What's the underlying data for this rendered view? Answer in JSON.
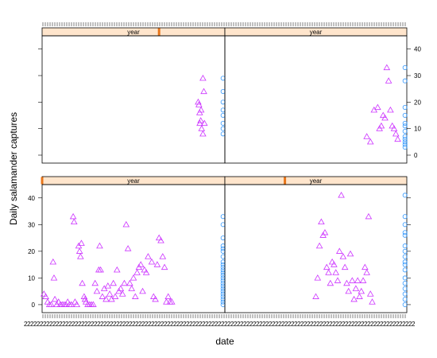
{
  "chart_data": {
    "type": "scatter",
    "xlabel": "date",
    "ylabel": "Daily salamander captures",
    "y_ticks": [
      0,
      10,
      20,
      30,
      40
    ],
    "ylim": [
      -3,
      45
    ],
    "grid": false,
    "layout": "2x2 lattice panels",
    "panels": [
      {
        "position": "top-left",
        "strip": "year",
        "strip_marker": 0.64,
        "series": [
          {
            "marker": "triangle",
            "color": "#cc33ff",
            "points": [
              [
                0.854,
                20
              ],
              [
                0.858,
                19
              ],
              [
                0.862,
                16
              ],
              [
                0.868,
                13
              ],
              [
                0.873,
                10
              ],
              [
                0.88,
                29
              ],
              [
                0.885,
                24
              ],
              [
                0.888,
                12
              ],
              [
                0.88,
                8
              ],
              [
                0.863,
                12
              ],
              [
                0.87,
                17
              ]
            ]
          },
          {
            "marker": "circle",
            "color": "#3399ff",
            "points": [
              [
                0.99,
                29
              ],
              [
                0.99,
                24
              ],
              [
                0.99,
                20
              ],
              [
                0.99,
                17
              ],
              [
                0.99,
                15
              ],
              [
                0.99,
                12
              ],
              [
                0.99,
                10
              ],
              [
                0.99,
                8
              ]
            ]
          }
        ]
      },
      {
        "position": "top-right",
        "strip": "year",
        "strip_marker": null,
        "series": [
          {
            "marker": "triangle",
            "color": "#cc33ff",
            "points": [
              [
                0.78,
                7
              ],
              [
                0.8,
                5
              ],
              [
                0.82,
                17
              ],
              [
                0.84,
                18
              ],
              [
                0.85,
                10
              ],
              [
                0.86,
                11
              ],
              [
                0.87,
                15
              ],
              [
                0.88,
                14
              ],
              [
                0.89,
                33
              ],
              [
                0.9,
                28
              ],
              [
                0.91,
                17
              ],
              [
                0.92,
                11
              ],
              [
                0.93,
                10
              ],
              [
                0.94,
                8
              ],
              [
                0.95,
                6
              ]
            ]
          },
          {
            "marker": "circle",
            "color": "#3399ff",
            "points": [
              [
                0.99,
                33
              ],
              [
                0.99,
                28
              ],
              [
                0.99,
                18
              ],
              [
                0.99,
                15
              ],
              [
                0.99,
                12
              ],
              [
                0.99,
                11
              ],
              [
                0.99,
                9
              ],
              [
                0.99,
                7
              ],
              [
                0.99,
                6
              ],
              [
                0.99,
                5
              ],
              [
                0.99,
                4
              ],
              [
                0.99,
                3
              ]
            ]
          }
        ]
      },
      {
        "position": "bottom-left",
        "strip": "year",
        "strip_marker": 0.0,
        "series": [
          {
            "marker": "triangle",
            "color": "#cc33ff",
            "points": [
              [
                0.01,
                4
              ],
              [
                0.02,
                3
              ],
              [
                0.03,
                1
              ],
              [
                0.04,
                0
              ],
              [
                0.05,
                0
              ],
              [
                0.06,
                16
              ],
              [
                0.065,
                10
              ],
              [
                0.07,
                2
              ],
              [
                0.08,
                0
              ],
              [
                0.09,
                1
              ],
              [
                0.1,
                0
              ],
              [
                0.11,
                0
              ],
              [
                0.12,
                0
              ],
              [
                0.13,
                0
              ],
              [
                0.14,
                1
              ],
              [
                0.15,
                0
              ],
              [
                0.16,
                0
              ],
              [
                0.17,
                33
              ],
              [
                0.175,
                31
              ],
              [
                0.18,
                1
              ],
              [
                0.19,
                0
              ],
              [
                0.2,
                22
              ],
              [
                0.205,
                20
              ],
              [
                0.21,
                18
              ],
              [
                0.215,
                23
              ],
              [
                0.22,
                8
              ],
              [
                0.23,
                3
              ],
              [
                0.235,
                2
              ],
              [
                0.24,
                1
              ],
              [
                0.25,
                0
              ],
              [
                0.26,
                0
              ],
              [
                0.27,
                0
              ],
              [
                0.28,
                0
              ],
              [
                0.29,
                8
              ],
              [
                0.3,
                5
              ],
              [
                0.31,
                13
              ],
              [
                0.315,
                22
              ],
              [
                0.32,
                13
              ],
              [
                0.33,
                3
              ],
              [
                0.34,
                6
              ],
              [
                0.35,
                2
              ],
              [
                0.36,
                7
              ],
              [
                0.37,
                4
              ],
              [
                0.38,
                2
              ],
              [
                0.39,
                8
              ],
              [
                0.4,
                3
              ],
              [
                0.41,
                13
              ],
              [
                0.42,
                5
              ],
              [
                0.43,
                6
              ],
              [
                0.44,
                4
              ],
              [
                0.45,
                8
              ],
              [
                0.46,
                30
              ],
              [
                0.47,
                21
              ],
              [
                0.48,
                8
              ],
              [
                0.49,
                6
              ],
              [
                0.5,
                10
              ],
              [
                0.51,
                3
              ],
              [
                0.52,
                12
              ],
              [
                0.53,
                14
              ],
              [
                0.54,
                15
              ],
              [
                0.55,
                5
              ],
              [
                0.56,
                13
              ],
              [
                0.57,
                12
              ],
              [
                0.58,
                18
              ],
              [
                0.6,
                16
              ],
              [
                0.61,
                3
              ],
              [
                0.62,
                2
              ],
              [
                0.63,
                15
              ],
              [
                0.64,
                25
              ],
              [
                0.65,
                24
              ],
              [
                0.66,
                18
              ],
              [
                0.67,
                14
              ],
              [
                0.68,
                1
              ],
              [
                0.69,
                3
              ],
              [
                0.7,
                1
              ],
              [
                0.71,
                1
              ]
            ]
          },
          {
            "marker": "circle",
            "color": "#3399ff",
            "points": [
              [
                0.99,
                33
              ],
              [
                0.99,
                30
              ],
              [
                0.99,
                25
              ],
              [
                0.99,
                22
              ],
              [
                0.99,
                21
              ],
              [
                0.99,
                20
              ],
              [
                0.99,
                18
              ],
              [
                0.99,
                16
              ],
              [
                0.99,
                15
              ],
              [
                0.99,
                14
              ],
              [
                0.99,
                13
              ],
              [
                0.99,
                12
              ],
              [
                0.99,
                11
              ],
              [
                0.99,
                10
              ],
              [
                0.99,
                9
              ],
              [
                0.99,
                8
              ],
              [
                0.99,
                7
              ],
              [
                0.99,
                6
              ],
              [
                0.99,
                5
              ],
              [
                0.99,
                4
              ],
              [
                0.99,
                3
              ],
              [
                0.99,
                2
              ],
              [
                0.99,
                1
              ],
              [
                0.99,
                0
              ]
            ]
          }
        ]
      },
      {
        "position": "bottom-right",
        "strip": "year",
        "strip_marker": 0.33,
        "series": [
          {
            "marker": "triangle",
            "color": "#cc33ff",
            "points": [
              [
                0.5,
                3
              ],
              [
                0.51,
                10
              ],
              [
                0.52,
                22
              ],
              [
                0.53,
                31
              ],
              [
                0.54,
                26
              ],
              [
                0.55,
                27
              ],
              [
                0.56,
                14
              ],
              [
                0.57,
                12
              ],
              [
                0.58,
                8
              ],
              [
                0.59,
                16
              ],
              [
                0.6,
                15
              ],
              [
                0.61,
                12
              ],
              [
                0.62,
                9
              ],
              [
                0.63,
                20
              ],
              [
                0.64,
                41
              ],
              [
                0.65,
                18
              ],
              [
                0.66,
                14
              ],
              [
                0.67,
                8
              ],
              [
                0.68,
                5
              ],
              [
                0.69,
                19
              ],
              [
                0.7,
                9
              ],
              [
                0.71,
                2
              ],
              [
                0.72,
                6
              ],
              [
                0.73,
                9
              ],
              [
                0.74,
                3
              ],
              [
                0.75,
                5
              ],
              [
                0.76,
                9
              ],
              [
                0.77,
                14
              ],
              [
                0.78,
                12
              ],
              [
                0.79,
                33
              ],
              [
                0.8,
                4
              ],
              [
                0.81,
                1
              ]
            ]
          },
          {
            "marker": "circle",
            "color": "#3399ff",
            "points": [
              [
                0.99,
                41
              ],
              [
                0.99,
                33
              ],
              [
                0.99,
                30
              ],
              [
                0.99,
                27
              ],
              [
                0.99,
                26
              ],
              [
                0.99,
                22
              ],
              [
                0.99,
                20
              ],
              [
                0.99,
                18
              ],
              [
                0.99,
                16
              ],
              [
                0.99,
                15
              ],
              [
                0.99,
                13
              ],
              [
                0.99,
                10
              ],
              [
                0.99,
                8
              ],
              [
                0.99,
                6
              ],
              [
                0.99,
                4
              ],
              [
                0.99,
                2
              ],
              [
                0.99,
                0
              ]
            ]
          }
        ]
      }
    ]
  }
}
